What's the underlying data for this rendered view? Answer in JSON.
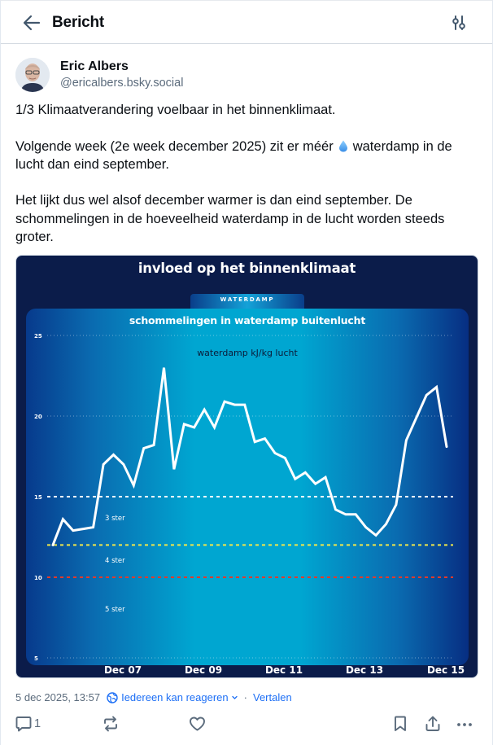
{
  "header": {
    "title": "Bericht",
    "back_icon": "arrow-left-icon",
    "filter_icon": "sliders-icon"
  },
  "author": {
    "name": "Eric Albers",
    "handle": "@ericalbers.bsky.social",
    "avatar_icon": "avatar-photo"
  },
  "post": {
    "paragraphs": [
      "1/3 Klimaatverandering voelbaar in het binnenklimaat.",
      "Volgende week (2e week december 2025) zit er méér",
      "waterdamp in de lucht dan eind september.",
      "Het lijkt dus wel alsof december warmer is dan eind september. De schommelingen in de hoeveelheid waterdamp in de lucht worden steeds groter."
    ],
    "emoji": "droplet-icon"
  },
  "chart_image": {
    "title": "invloed op het binnenklimaat",
    "tab_label": "WATERDAMP",
    "subtitle": "schommelingen in waterdamp buitenlucht",
    "colors": {
      "frame": "#0b1c4a",
      "line": "#ffffff",
      "threshold_3ster": "#ffffff",
      "threshold_4ster": "#f2e84a",
      "threshold_5ster": "#e23a2a"
    }
  },
  "chart_data": {
    "type": "line",
    "title": "invloed op het binnenklimaat",
    "subtitle": "schommelingen in waterdamp buitenlucht",
    "series_label": "waterdamp kJ/kg lucht",
    "xlabel": "",
    "ylabel": "waterdamp kJ/kg lucht",
    "ylim": [
      5,
      25
    ],
    "yticks": [
      5,
      10,
      15,
      20,
      25
    ],
    "xticks": [
      "Dec 07",
      "Dec 09",
      "Dec 11",
      "Dec 13",
      "Dec 15"
    ],
    "grid": "dotted at 5, 20, 25",
    "legend": "none",
    "thresholds": [
      {
        "value": 15,
        "color": "#ffffff",
        "style": "dashed",
        "zone_label": "3 ster"
      },
      {
        "value": 12,
        "color": "#f2e84a",
        "style": "dashed",
        "zone_label": "4 ster"
      },
      {
        "value": 10,
        "color": "#e23a2a",
        "style": "dashed",
        "zone_label": "5 ster"
      }
    ],
    "x_step": "6-hourly (approx. Dec 05 18:00 → Dec 15 12:00)",
    "series": [
      {
        "name": "waterdamp kJ/kg lucht",
        "values": [
          12.0,
          13.6,
          12.9,
          13.0,
          13.1,
          17.0,
          17.6,
          17.0,
          15.7,
          18.0,
          18.2,
          23.0,
          16.7,
          19.5,
          19.3,
          20.4,
          19.3,
          20.9,
          20.7,
          20.7,
          18.4,
          18.6,
          17.7,
          17.4,
          16.1,
          16.5,
          15.8,
          16.2,
          14.2,
          13.9,
          13.9,
          13.1,
          12.6,
          13.3,
          14.5,
          18.5,
          19.9,
          21.3,
          21.8,
          18.1
        ]
      }
    ]
  },
  "meta": {
    "timestamp": "5 dec 2025, 13:57",
    "reply_setting": "Iedereen kan reageren",
    "separator": "·",
    "translate": "Vertalen"
  },
  "actions": {
    "reply_count": "1",
    "reply_icon": "comment-icon",
    "repost_icon": "repost-icon",
    "like_icon": "heart-icon",
    "bookmark_icon": "bookmark-icon",
    "share_icon": "share-icon",
    "more_icon": "more-icon"
  }
}
